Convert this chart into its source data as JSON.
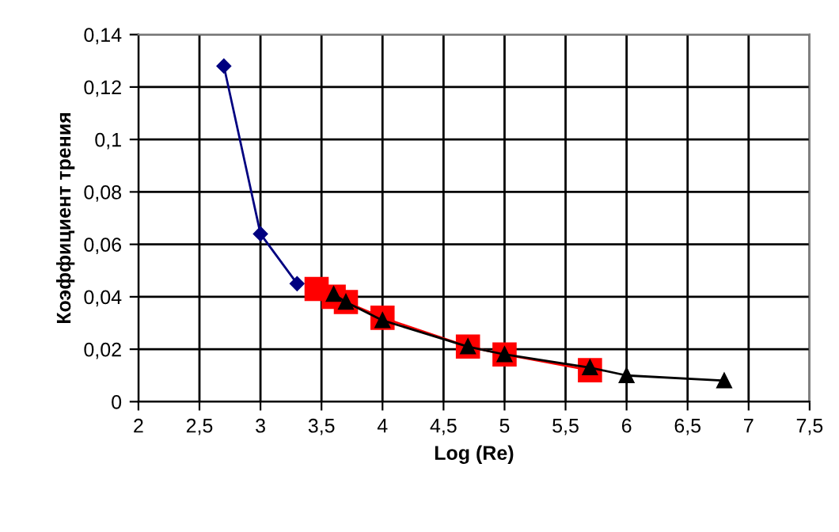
{
  "chart_data": {
    "type": "line",
    "xlabel": "Log (Re)",
    "ylabel": "Коэффициент трения",
    "xlim": [
      2,
      7.5
    ],
    "ylim": [
      0,
      0.14
    ],
    "xticks": [
      2,
      {
        "value": 2.5,
        "label": "2,5"
      },
      3,
      {
        "value": 3.5,
        "label": "3,5"
      },
      4,
      {
        "value": 4.5,
        "label": "4,5"
      },
      5,
      {
        "value": 5.5,
        "label": "5,5"
      },
      6,
      {
        "value": 6.5,
        "label": "6,5"
      },
      7,
      {
        "value": 7.5,
        "label": "7,5"
      }
    ],
    "yticks": [
      0,
      {
        "value": 0.02,
        "label": "0,02"
      },
      {
        "value": 0.04,
        "label": "0,04"
      },
      {
        "value": 0.06,
        "label": "0,06"
      },
      {
        "value": 0.08,
        "label": "0,08"
      },
      {
        "value": 0.1,
        "label": "0,1"
      },
      {
        "value": 0.12,
        "label": "0,12"
      },
      {
        "value": 0.14,
        "label": "0,14"
      }
    ],
    "grid": true,
    "legend": false,
    "series": [
      {
        "color": "#000080",
        "marker": "diamond",
        "x": [
          2.7,
          3,
          3.3
        ],
        "values": [
          0.128,
          0.064,
          0.045
        ]
      },
      {
        "color": "#ff0000",
        "marker": "square",
        "x": [
          3.46,
          3.6,
          3.7,
          4,
          4.7,
          5,
          5.7
        ],
        "values": [
          0.043,
          0.04,
          0.038,
          0.032,
          0.021,
          0.018,
          0.012
        ]
      },
      {
        "color": "#000000",
        "marker": "triangle",
        "x": [
          3.6,
          3.7,
          4,
          4.7,
          5,
          5.7,
          6,
          6.8
        ],
        "values": [
          0.041,
          0.038,
          0.031,
          0.021,
          0.018,
          0.013,
          0.01,
          0.008
        ]
      }
    ]
  }
}
